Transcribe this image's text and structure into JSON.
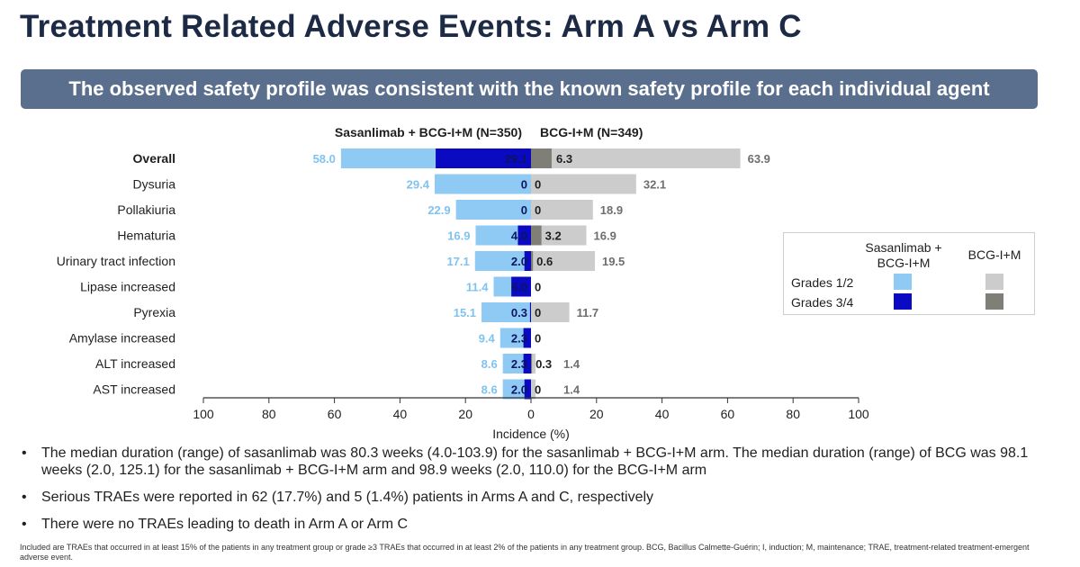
{
  "title": "Treatment Related Adverse Events: Arm A vs Arm C",
  "banner": "The observed safety profile was consistent with the known safety profile for each individual agent",
  "colors": {
    "left_grade12": "#8fcaf5",
    "left_grade34": "#0a0ac2",
    "right_grade12": "#cccccc",
    "right_grade34": "#7f7f78",
    "left_label": "#7fc3f0",
    "right_label": "#6e6e6e"
  },
  "chart_data": {
    "type": "bar",
    "orientation": "horizontal-butterfly",
    "left_arm_label": "Sasanlimab + BCG-I+M (N=350)",
    "right_arm_label": "BCG-I+M (N=349)",
    "categories": [
      "Overall",
      "Dysuria",
      "Pollakiuria",
      "Hematuria",
      "Urinary tract infection",
      "Lipase increased",
      "Pyrexia",
      "Amylase increased",
      "ALT increased",
      "AST increased"
    ],
    "series": [
      {
        "name": "Sasanlimab + BCG-I+M Grades 1/2",
        "side": "left",
        "values": [
          58.0,
          29.4,
          22.9,
          16.9,
          17.1,
          11.4,
          15.1,
          9.4,
          8.6,
          8.6
        ],
        "labels": [
          "58.0",
          "29.4",
          "22.9",
          "16.9",
          "17.1",
          "11.4",
          "15.1",
          "9.4",
          "8.6",
          "8.6"
        ]
      },
      {
        "name": "Sasanlimab + BCG-I+M Grades 3/4",
        "side": "left",
        "values": [
          29.1,
          0,
          0,
          4.0,
          2.0,
          6.0,
          0.3,
          2.3,
          2.3,
          2.0
        ],
        "labels": [
          "29.1",
          "0",
          "0",
          "4.0",
          "2.0",
          "6.0",
          "0.3",
          "2.3",
          "2.3",
          "2.0"
        ]
      },
      {
        "name": "BCG-I+M Grades 1/2",
        "side": "right",
        "values": [
          63.9,
          32.1,
          18.9,
          16.9,
          19.5,
          0,
          11.7,
          0,
          1.4,
          1.4
        ],
        "labels": [
          "63.9",
          "32.1",
          "18.9",
          "16.9",
          "19.5",
          "",
          "11.7",
          "",
          "1.4",
          "1.4"
        ]
      },
      {
        "name": "BCG-I+M Grades 3/4",
        "side": "right",
        "values": [
          6.3,
          0,
          0,
          3.2,
          0.6,
          0,
          0,
          0,
          0.3,
          0
        ],
        "labels": [
          "6.3",
          "0",
          "0",
          "3.2",
          "0.6",
          "0",
          "0",
          "0",
          "0.3",
          "0"
        ]
      }
    ],
    "xlabel": "Incidence (%)",
    "xlim": [
      -100,
      100
    ],
    "ticks": [
      "100",
      "80",
      "60",
      "40",
      "20",
      "0",
      "20",
      "40",
      "60",
      "80",
      "100"
    ],
    "grid": false
  },
  "legend": {
    "col_left": "Sasanlimab + BCG-I+M",
    "col_right": "BCG-I+M",
    "rows": [
      "Grades 1/2",
      "Grades 3/4"
    ]
  },
  "bullets": [
    "The median duration (range) of sasanlimab was 80.3 weeks (4.0-103.9) for the sasanlimab + BCG-I+M arm. The median duration (range) of BCG was 98.1 weeks (2.0, 125.1) for the sasanlimab + BCG-I+M arm and 98.9 weeks (2.0, 110.0) for the BCG-I+M arm",
    "Serious TRAEs were reported in 62 (17.7%) and 5 (1.4%) patients in Arms A and C, respectively",
    "There were no TRAEs leading to death in Arm A or Arm C"
  ],
  "bullet_symbol": "•",
  "footnote": "Included are TRAEs that occurred in at least 15% of the patients in any treatment group or grade ≥3 TRAEs that occurred in at least 2% of the patients in any treatment group. BCG, Bacillus Calmette-Guérin; I, induction; M, maintenance; TRAE, treatment-related treatment-emergent adverse event."
}
